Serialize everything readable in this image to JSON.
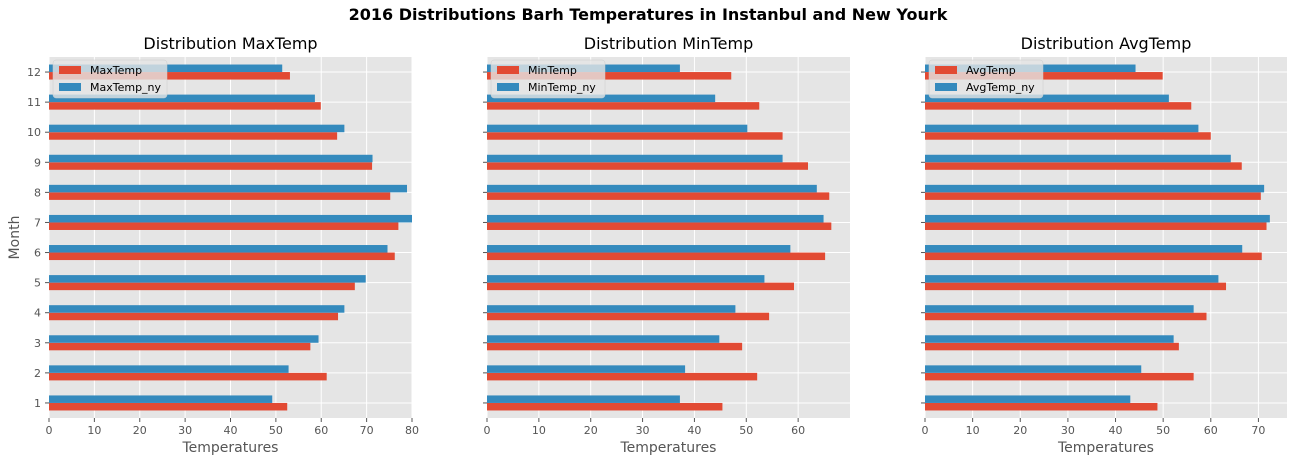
{
  "suptitle": "2016 Distributions Barh Temperatures in Instanbul and New Yourk",
  "colors": {
    "istanbul": "#E24A33",
    "new_york": "#348ABD",
    "panel_bg": "#E5E5E5",
    "grid": "#FFFFFF"
  },
  "chart_data": [
    {
      "type": "bar",
      "orientation": "horizontal",
      "title": "Distribution MaxTemp",
      "xlabel": "Temperatures",
      "ylabel": "Month",
      "categories": [
        "1",
        "2",
        "3",
        "4",
        "5",
        "6",
        "7",
        "8",
        "9",
        "10",
        "11",
        "12"
      ],
      "xlim": [
        0,
        80
      ],
      "xticks": [
        "0",
        "10",
        "20",
        "30",
        "40",
        "50",
        "60",
        "70",
        "80"
      ],
      "grid": true,
      "legend_position": "top-left",
      "series": [
        {
          "name": "MaxTemp",
          "values": [
            52.5,
            61.2,
            57.6,
            63.7,
            67.4,
            76.2,
            77.0,
            75.2,
            71.2,
            63.5,
            59.9,
            53.1
          ]
        },
        {
          "name": "MaxTemp_ny",
          "values": [
            49.2,
            52.8,
            59.4,
            65.1,
            69.8,
            74.6,
            80.1,
            78.9,
            71.3,
            65.1,
            58.6,
            51.4
          ]
        }
      ]
    },
    {
      "type": "bar",
      "orientation": "horizontal",
      "title": "Distribution MinTemp",
      "xlabel": "Temperatures",
      "ylabel": "",
      "categories": [
        "1",
        "2",
        "3",
        "4",
        "5",
        "6",
        "7",
        "8",
        "9",
        "10",
        "11",
        "12"
      ],
      "xlim": [
        0,
        70
      ],
      "xticks": [
        "0",
        "10",
        "20",
        "30",
        "40",
        "50",
        "60"
      ],
      "grid": true,
      "legend_position": "top-left",
      "series": [
        {
          "name": "MinTemp",
          "values": [
            45.4,
            52.1,
            49.2,
            54.4,
            59.2,
            65.2,
            66.4,
            66.0,
            61.9,
            57.0,
            52.5,
            47.1
          ]
        },
        {
          "name": "MinTemp_ny",
          "values": [
            37.2,
            38.2,
            44.8,
            47.9,
            53.5,
            58.5,
            64.9,
            63.6,
            57.0,
            50.2,
            44.0,
            37.2
          ]
        }
      ]
    },
    {
      "type": "bar",
      "orientation": "horizontal",
      "title": "Distribution AvgTemp",
      "xlabel": "Temperatures",
      "ylabel": "",
      "categories": [
        "1",
        "2",
        "3",
        "4",
        "5",
        "6",
        "7",
        "8",
        "9",
        "10",
        "11",
        "12"
      ],
      "xlim": [
        0,
        76
      ],
      "xticks": [
        "0",
        "10",
        "20",
        "30",
        "40",
        "50",
        "60",
        "70"
      ],
      "grid": true,
      "legend_position": "top-left",
      "series": [
        {
          "name": "AvgTemp",
          "values": [
            48.8,
            56.4,
            53.3,
            59.1,
            63.2,
            70.7,
            71.7,
            70.5,
            66.5,
            60.0,
            55.9,
            49.9
          ]
        },
        {
          "name": "AvgTemp_ny",
          "values": [
            43.1,
            45.4,
            52.2,
            56.4,
            61.6,
            66.6,
            72.4,
            71.2,
            64.2,
            57.4,
            51.2,
            44.2
          ]
        }
      ]
    }
  ]
}
